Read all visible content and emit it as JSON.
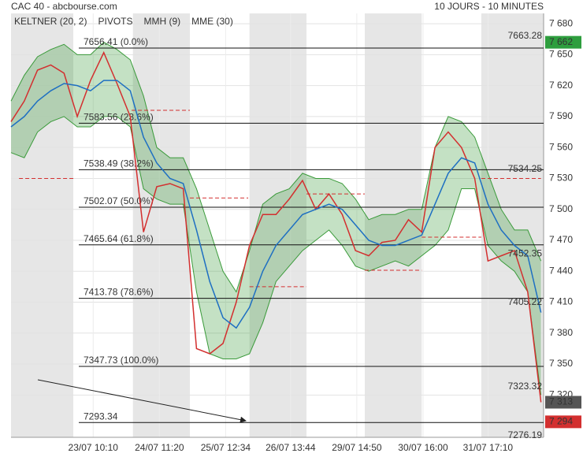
{
  "chart_data": {
    "type": "line",
    "title": "CAC 40 - abcbourse.com",
    "subtitle": "10 JOURS - 10 MINUTES",
    "xlim": [
      0,
      402
    ],
    "ylim": [
      7279,
      7690
    ],
    "xticks": [
      {
        "value": 62,
        "label": "23/07 10:10"
      },
      {
        "value": 112,
        "label": "24/07 11:20"
      },
      {
        "value": 162,
        "label": "25/07 12:34"
      },
      {
        "value": 211,
        "label": "26/07 13:44"
      },
      {
        "value": 261,
        "label": "29/07 14:50"
      },
      {
        "value": 311,
        "label": "30/07 16:00"
      },
      {
        "value": 360,
        "label": "31/07 17:10"
      }
    ],
    "yticks": [
      {
        "value": 7680,
        "label": "7 680"
      },
      {
        "value": 7650,
        "label": "7 650"
      },
      {
        "value": 7620,
        "label": "7 620"
      },
      {
        "value": 7590,
        "label": "7 590"
      },
      {
        "value": 7560,
        "label": "7 560"
      },
      {
        "value": 7530,
        "label": "7 530"
      },
      {
        "value": 7500,
        "label": "7 500"
      },
      {
        "value": 7470,
        "label": "7 470"
      },
      {
        "value": 7440,
        "label": "7 440"
      },
      {
        "value": 7410,
        "label": "7 410"
      },
      {
        "value": 7380,
        "label": "7 380"
      },
      {
        "value": 7350,
        "label": "7 350"
      },
      {
        "value": 7320,
        "label": "7 320"
      }
    ],
    "grid": true,
    "shaded_ranges": [
      [
        0,
        47
      ],
      [
        92,
        135
      ],
      [
        180,
        223
      ],
      [
        267,
        310
      ],
      [
        355,
        402
      ]
    ],
    "x": [
      0,
      10,
      20,
      30,
      40,
      50,
      60,
      70,
      80,
      90,
      100,
      110,
      120,
      130,
      140,
      150,
      160,
      170,
      180,
      190,
      200,
      210,
      220,
      230,
      240,
      250,
      260,
      270,
      280,
      290,
      300,
      310,
      320,
      330,
      340,
      350,
      360,
      370,
      380,
      390,
      400
    ],
    "keltner": {
      "name": "KELTNER (20, 2)",
      "color": "#3a9a3a",
      "upper": [
        7605,
        7630,
        7648,
        7655,
        7660,
        7650,
        7650,
        7662,
        7655,
        7645,
        7610,
        7560,
        7550,
        7550,
        7520,
        7480,
        7440,
        7420,
        7460,
        7505,
        7515,
        7520,
        7535,
        7530,
        7530,
        7525,
        7510,
        7490,
        7495,
        7495,
        7500,
        7500,
        7560,
        7590,
        7585,
        7570,
        7535,
        7500,
        7480,
        7480,
        7450
      ],
      "lower": [
        7555,
        7550,
        7575,
        7585,
        7590,
        7580,
        7580,
        7590,
        7590,
        7580,
        7520,
        7510,
        7505,
        7505,
        7420,
        7360,
        7355,
        7355,
        7360,
        7390,
        7430,
        7445,
        7460,
        7470,
        7480,
        7465,
        7445,
        7440,
        7445,
        7450,
        7445,
        7455,
        7465,
        7480,
        7520,
        7520,
        7465,
        7450,
        7440,
        7420,
        7320
      ]
    },
    "pivots": {
      "name": "PIVOTS",
      "color": "#d32f2f",
      "levels": [
        {
          "value": 7530,
          "x": [
            6,
            47
          ]
        },
        {
          "value": 7596,
          "x": [
            91,
            135
          ]
        },
        {
          "value": 7511,
          "x": [
            135,
            179
          ]
        },
        {
          "value": 7425,
          "x": [
            180,
            223
          ]
        },
        {
          "value": 7515,
          "x": [
            223,
            267
          ]
        },
        {
          "value": 7441,
          "x": [
            267,
            310
          ]
        },
        {
          "value": 7473,
          "x": [
            310,
            355
          ]
        },
        {
          "value": 7530,
          "x": [
            355,
            400
          ]
        }
      ]
    },
    "series": [
      {
        "name": "MMH (9)",
        "color": "#d32f2f",
        "values": [
          7585,
          7605,
          7635,
          7640,
          7632,
          7590,
          7625,
          7652,
          7622,
          7590,
          7478,
          7522,
          7525,
          7520,
          7365,
          7360,
          7370,
          7410,
          7465,
          7495,
          7495,
          7510,
          7528,
          7500,
          7515,
          7495,
          7460,
          7455,
          7468,
          7470,
          7490,
          7478,
          7560,
          7575,
          7560,
          7530,
          7450,
          7455,
          7460,
          7420,
          7313
        ]
      },
      {
        "name": "MME (30)",
        "color": "#1e6fc2",
        "values": [
          7580,
          7590,
          7605,
          7615,
          7622,
          7620,
          7615,
          7625,
          7625,
          7615,
          7570,
          7545,
          7530,
          7525,
          7480,
          7430,
          7395,
          7385,
          7405,
          7440,
          7465,
          7480,
          7495,
          7500,
          7505,
          7500,
          7485,
          7470,
          7465,
          7465,
          7470,
          7475,
          7505,
          7535,
          7550,
          7545,
          7505,
          7480,
          7465,
          7455,
          7400
        ]
      }
    ],
    "fib_levels": [
      {
        "value": 7656.41,
        "label": "7656.41  (0.0%)"
      },
      {
        "value": 7583.56,
        "label": "7583.56  (23.6%)"
      },
      {
        "value": 7538.49,
        "label": "7538.49  (38.2%)"
      },
      {
        "value": 7502.07,
        "label": "7502.07  (50.0%)"
      },
      {
        "value": 7465.64,
        "label": "7465.64  (61.8%)"
      },
      {
        "value": 7413.78,
        "label": "7413.78  (78.6%)"
      },
      {
        "value": 7347.73,
        "label": "7347.73  (100.0%)"
      },
      {
        "value": 7293.34,
        "label": "7293.34"
      }
    ],
    "annotations": [
      {
        "value": 7663.28,
        "label": "7663.28",
        "color": "#2e9e3e"
      },
      {
        "value": 7534.25,
        "label": "7534.25",
        "color": "#2e9e3e"
      },
      {
        "value": 7452.35,
        "label": "7452.35",
        "color": "#2e9e3e"
      },
      {
        "value": 7405.22,
        "label": "7405.22",
        "color": "#333333"
      },
      {
        "value": 7323.32,
        "label": "7323.32",
        "color": "#d32f2f"
      },
      {
        "value": 7276.19,
        "label": "7276.19",
        "color": "#d32f2f"
      }
    ],
    "axis_boxes": [
      {
        "value": 7662,
        "label": "7 662",
        "color": "#2e9e3e"
      },
      {
        "value": 7313,
        "label": "7 313",
        "color": "#555555"
      },
      {
        "value": 7294,
        "label": "7 294",
        "color": "#d32f2f"
      }
    ]
  }
}
